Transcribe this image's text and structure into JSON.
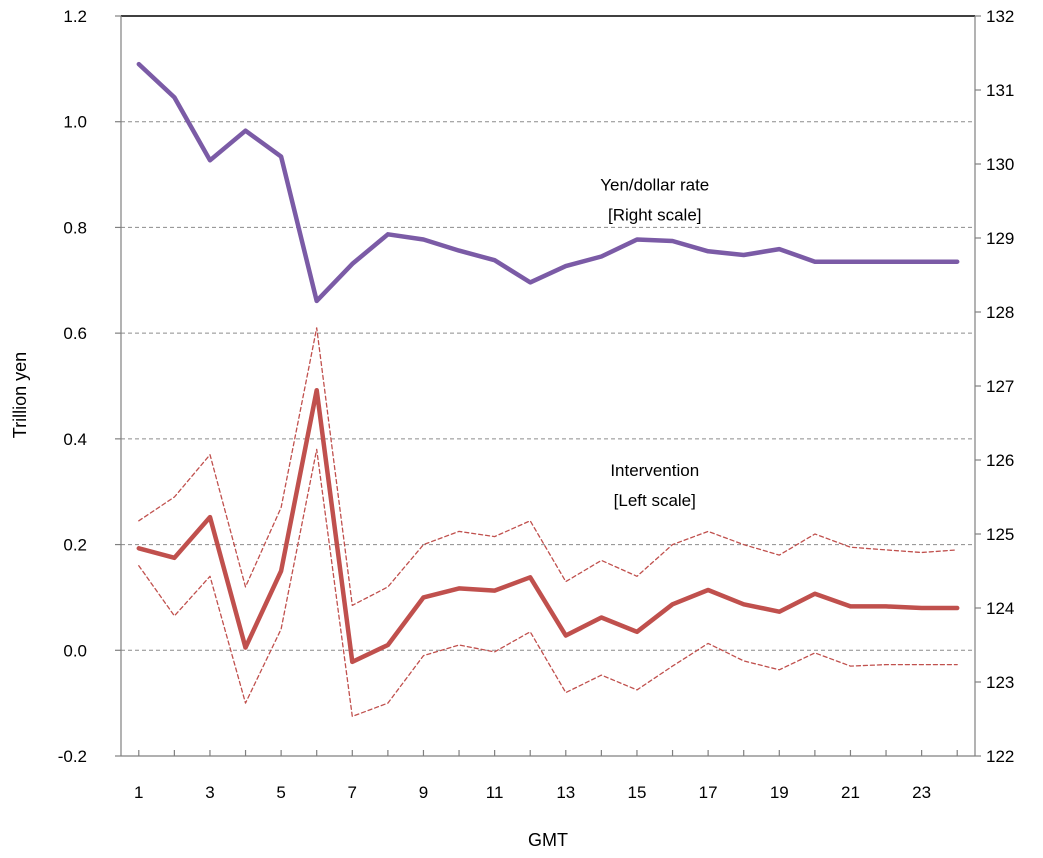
{
  "chart_data": {
    "type": "line",
    "xlabel": "GMT",
    "ylabel": "Trillion yen",
    "x": [
      1,
      2,
      3,
      4,
      5,
      6,
      7,
      8,
      9,
      10,
      11,
      12,
      13,
      14,
      15,
      16,
      17,
      18,
      19,
      20,
      21,
      22,
      23,
      24
    ],
    "x_tick_labels": [
      "1",
      "3",
      "5",
      "7",
      "9",
      "11",
      "13",
      "15",
      "17",
      "19",
      "21",
      "23"
    ],
    "x_tick_values": [
      1,
      3,
      5,
      7,
      9,
      11,
      13,
      15,
      17,
      19,
      21,
      23
    ],
    "xlim": [
      0.5,
      24.5
    ],
    "left_axis": {
      "ylim": [
        -0.2,
        1.2
      ],
      "ticks": [
        -0.2,
        0.0,
        0.2,
        0.4,
        0.6,
        0.8,
        1.0,
        1.2
      ],
      "tick_labels": [
        "-0.2",
        "0.0",
        "0.2",
        "0.4",
        "0.6",
        "0.8",
        "1.0",
        "1.2"
      ]
    },
    "right_axis": {
      "ylim": [
        122,
        132
      ],
      "ticks": [
        122,
        123,
        124,
        125,
        126,
        127,
        128,
        129,
        130,
        131,
        132
      ],
      "tick_labels": [
        "122",
        "123",
        "124",
        "125",
        "126",
        "127",
        "128",
        "129",
        "130",
        "131",
        "132"
      ]
    },
    "grid": "horizontal dashed",
    "series": [
      {
        "axis": "right",
        "color": "#7B5BA6",
        "style": "solid-thick",
        "values": [
          131.35,
          130.9,
          130.05,
          130.45,
          130.1,
          128.15,
          128.65,
          129.05,
          128.98,
          128.83,
          128.7,
          128.4,
          128.62,
          128.75,
          128.98,
          128.96,
          128.82,
          128.77,
          128.85,
          128.68,
          128.68,
          128.68,
          128.68,
          128.68
        ]
      },
      {
        "axis": "left",
        "color": "#C0504D",
        "style": "solid-thick",
        "values": [
          0.193,
          0.175,
          0.252,
          0.005,
          0.15,
          0.492,
          -0.022,
          0.01,
          0.1,
          0.117,
          0.113,
          0.138,
          0.028,
          0.062,
          0.035,
          0.087,
          0.114,
          0.087,
          0.073,
          0.107,
          0.083,
          0.083,
          0.08,
          0.08
        ]
      },
      {
        "axis": "left",
        "color": "#C0504D",
        "style": "dashed-thin",
        "values": [
          0.245,
          0.29,
          0.37,
          0.12,
          0.27,
          0.61,
          0.085,
          0.12,
          0.2,
          0.225,
          0.215,
          0.245,
          0.13,
          0.17,
          0.14,
          0.2,
          0.225,
          0.2,
          0.18,
          0.22,
          0.195,
          0.19,
          0.185,
          0.19
        ]
      },
      {
        "axis": "left",
        "color": "#C0504D",
        "style": "dashed-thin",
        "values": [
          0.16,
          0.065,
          0.14,
          -0.1,
          0.04,
          0.38,
          -0.125,
          -0.1,
          -0.01,
          0.01,
          -0.003,
          0.035,
          -0.08,
          -0.047,
          -0.075,
          -0.03,
          0.013,
          -0.02,
          -0.037,
          -0.005,
          -0.03,
          -0.027,
          -0.027,
          -0.027
        ]
      }
    ],
    "annotations": [
      {
        "lines": [
          "Yen/dollar rate",
          "[Right scale]"
        ],
        "x": 15.5,
        "y_left": 0.87
      },
      {
        "lines": [
          "Intervention",
          "[Left scale]"
        ],
        "x": 15.5,
        "y_left": 0.33
      }
    ]
  }
}
